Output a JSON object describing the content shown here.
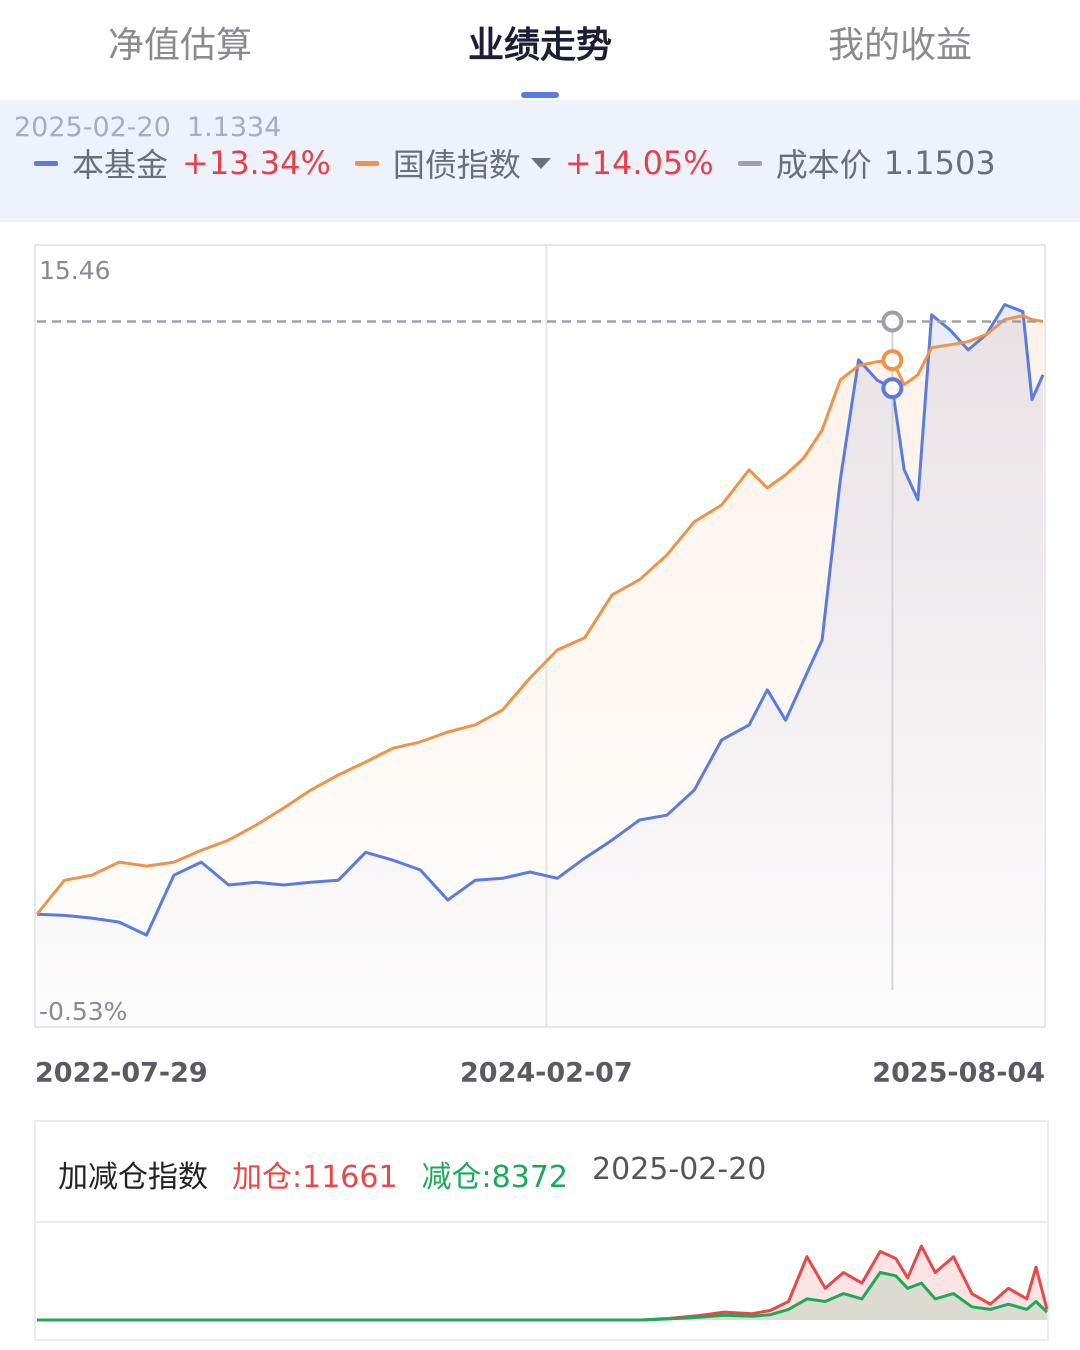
{
  "tabs": [
    "净值估算",
    "业绩走势",
    "我的收益"
  ],
  "active_tab": 1,
  "chart_data": [
    {
      "type": "line",
      "selected": "2025-02-20",
      "selected_nav": "1.1334",
      "x": [
        "2022-07-29",
        "2022-08-28",
        "2022-09-27",
        "2022-10-27",
        "2022-11-26",
        "2022-12-26",
        "2023-01-25",
        "2023-02-24",
        "2023-03-26",
        "2023-04-25",
        "2023-05-25",
        "2023-06-24",
        "2023-07-24",
        "2023-08-23",
        "2023-09-22",
        "2023-10-22",
        "2023-11-21",
        "2023-12-21",
        "2024-01-20",
        "2024-02-19",
        "2024-03-20",
        "2024-04-19",
        "2024-05-19",
        "2024-06-18",
        "2024-07-18",
        "2024-08-17",
        "2024-09-16",
        "2024-10-06",
        "2024-10-26",
        "2024-11-15",
        "2024-12-05",
        "2024-12-25",
        "2025-01-14",
        "2025-02-03",
        "2025-02-20",
        "2025-03-05",
        "2025-03-20",
        "2025-04-04",
        "2025-04-24",
        "2025-05-14",
        "2025-06-03",
        "2025-06-23",
        "2025-07-13",
        "2025-07-23",
        "2025-08-04"
      ],
      "xlim": [
        "2022-07-29",
        "2025-08-04"
      ],
      "xticks": [
        "2022-07-29",
        "2024-02-07",
        "2025-08-04"
      ],
      "ylim": [
        -2.81,
        16.92
      ],
      "yticks": [
        15.46,
        {
          "value": -0.53,
          "label": "-0.53%"
        }
      ],
      "series": [
        {
          "name": "本基金",
          "change": "+13.34%",
          "color": "#5b7be0",
          "values": [
            0,
            -0.03,
            -0.1,
            -0.2,
            -0.53,
            0.99,
            1.32,
            0.74,
            0.81,
            0.74,
            0.81,
            0.86,
            1.57,
            1.37,
            1.12,
            0.36,
            0.86,
            0.91,
            1.07,
            0.91,
            1.42,
            1.88,
            2.39,
            2.51,
            3.15,
            4.42,
            4.8,
            5.69,
            4.92,
            5.94,
            6.95,
            11.02,
            14.06,
            13.55,
            13.34,
            11.27,
            10.51,
            15.2,
            14.82,
            14.31,
            14.7,
            15.46,
            15.28,
            13.05,
            13.68
          ]
        },
        {
          "name": "国债指数",
          "change": "+14.05%",
          "color": "#f0934a",
          "values": [
            0,
            0.86,
            0.99,
            1.32,
            1.22,
            1.32,
            1.62,
            1.88,
            2.26,
            2.69,
            3.15,
            3.53,
            3.86,
            4.21,
            4.37,
            4.62,
            4.8,
            5.18,
            5.99,
            6.7,
            7.01,
            8.1,
            8.48,
            9.11,
            9.95,
            10.38,
            11.27,
            10.81,
            11.14,
            11.57,
            12.28,
            13.55,
            13.91,
            14.01,
            14.05,
            13.43,
            13.68,
            14.37,
            14.44,
            14.52,
            14.7,
            15.08,
            15.18,
            15.08,
            15.03
          ]
        }
      ],
      "reference": {
        "name": "成本价",
        "label": "1.1503",
        "value": 15.03,
        "color": "#a0a0a8"
      }
    },
    {
      "type": "area",
      "title": "加减仓指数",
      "date": "2025-02-20",
      "x": [
        "2022-07-29",
        "2022-08-28",
        "2022-09-27",
        "2022-10-27",
        "2022-11-26",
        "2022-12-26",
        "2023-01-25",
        "2023-02-24",
        "2023-03-26",
        "2023-04-25",
        "2023-05-25",
        "2023-06-24",
        "2023-07-24",
        "2023-08-23",
        "2023-09-22",
        "2023-10-22",
        "2023-11-21",
        "2023-12-21",
        "2024-01-20",
        "2024-02-19",
        "2024-03-20",
        "2024-04-19",
        "2024-05-19",
        "2024-06-18",
        "2024-07-18",
        "2024-08-17",
        "2024-09-16",
        "2024-10-06",
        "2024-10-26",
        "2024-11-15",
        "2024-12-05",
        "2024-12-25",
        "2025-01-14",
        "2025-02-03",
        "2025-02-20",
        "2025-03-05",
        "2025-03-20",
        "2025-04-04",
        "2025-04-24",
        "2025-05-14",
        "2025-06-03",
        "2025-06-23",
        "2025-07-13",
        "2025-07-23",
        "2025-08-04"
      ],
      "xlim": [
        "2022-07-29",
        "2025-08-04"
      ],
      "ylim": [
        0,
        18000
      ],
      "series": [
        {
          "name": "加仓:11661",
          "color": "#e84848",
          "values": [
            0,
            0,
            0,
            0,
            0,
            0,
            0,
            0,
            0,
            0,
            0,
            0,
            0,
            0,
            0,
            0,
            0,
            0,
            0,
            0,
            0,
            0,
            0,
            300,
            800,
            1500,
            1200,
            1800,
            3500,
            12000,
            6000,
            9000,
            7000,
            13000,
            11661,
            8000,
            14000,
            9000,
            12000,
            5000,
            3000,
            6000,
            4000,
            10000,
            2000
          ]
        },
        {
          "name": "减仓:8372",
          "color": "#1fa85a",
          "values": [
            0,
            0,
            0,
            0,
            0,
            0,
            0,
            0,
            0,
            0,
            0,
            0,
            0,
            0,
            0,
            0,
            0,
            0,
            0,
            0,
            0,
            0,
            0,
            200,
            500,
            900,
            700,
            1000,
            2000,
            4000,
            3500,
            5000,
            4000,
            9000,
            8372,
            6000,
            7000,
            4000,
            5000,
            2500,
            2000,
            3000,
            2000,
            3500,
            1500
          ]
        }
      ]
    }
  ]
}
